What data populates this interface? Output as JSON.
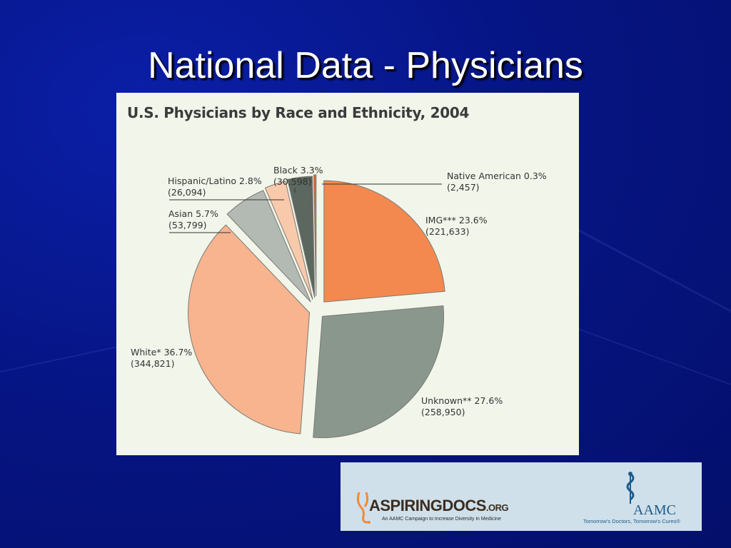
{
  "slide": {
    "title": "National Data - Physicians"
  },
  "chart_data": {
    "type": "pie",
    "title": "U.S. Physicians by Race and Ethnicity, 2004",
    "slices": [
      {
        "label": "IMG***",
        "percent": 23.6,
        "count": "221,633",
        "color": "#f4894f",
        "display": "IMG*** 23.6%",
        "count_display": "(221,633)"
      },
      {
        "label": "Unknown**",
        "percent": 27.6,
        "count": "258,950",
        "color": "#8a978d",
        "display": "Unknown** 27.6%",
        "count_display": "(258,950)"
      },
      {
        "label": "White*",
        "percent": 36.7,
        "count": "344,821",
        "color": "#f7b48f",
        "display": "White* 36.7%",
        "count_display": "(344,821)"
      },
      {
        "label": "Asian",
        "percent": 5.7,
        "count": "53,799",
        "color": "#b3bab3",
        "display": "Asian 5.7%",
        "count_display": "(53,799)"
      },
      {
        "label": "Hispanic/Latino",
        "percent": 2.8,
        "count": "26,094",
        "color": "#f9c9ab",
        "display": "Hispanic/Latino 2.8%",
        "count_display": "(26,094)"
      },
      {
        "label": "Black",
        "percent": 3.3,
        "count": "30,598",
        "color": "#5b675f",
        "display": "Black 3.3%",
        "count_display": "(30,598)"
      },
      {
        "label": "Native American",
        "percent": 0.3,
        "count": "2,457",
        "color": "#e8622c",
        "display": "Native American 0.3%",
        "count_display": "(2,457)"
      }
    ]
  },
  "logos": {
    "aspiring_docs": {
      "name_a": "ASPIRING",
      "name_b": "DOCS",
      "name_c": ".ORG",
      "subtitle": "An AAMC Campaign to Increase Diversity in Medicine",
      "accent_color": "#f08a3a"
    },
    "aamc": {
      "name": "AAMC",
      "tagline": "Tomorrow's Doctors, Tomorrow's Cures®",
      "color": "#1e5a8c"
    }
  }
}
